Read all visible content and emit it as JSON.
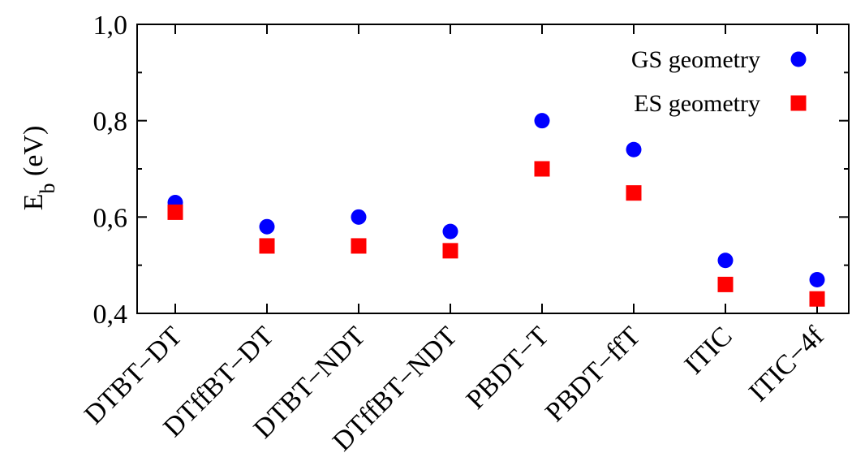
{
  "chart_data": {
    "type": "scatter",
    "categories": [
      "DTBT−DT",
      "DTffBT−DT",
      "DTBT−NDT",
      "DTffBT−NDT",
      "PBDT−T",
      "PBDT−ffT",
      "ITIC",
      "ITIC−4f"
    ],
    "series": [
      {
        "name": "GS geometry",
        "marker": "circle",
        "color": "#0000ff",
        "values": [
          0.63,
          0.58,
          0.6,
          0.57,
          0.8,
          0.74,
          0.51,
          0.47
        ]
      },
      {
        "name": "ES geometry",
        "marker": "square",
        "color": "#ff0000",
        "values": [
          0.61,
          0.54,
          0.54,
          0.53,
          0.7,
          0.65,
          0.46,
          0.43
        ]
      }
    ],
    "ylabel_main": "E",
    "ylabel_sub": "b",
    "ylabel_unit": " (eV)",
    "ylim": [
      0.4,
      1.0
    ],
    "yticks": [
      0.4,
      0.6,
      0.8,
      1.0
    ],
    "ytick_labels": [
      "0,4",
      "0,6",
      "0,8",
      "1,0"
    ],
    "grid": false,
    "legend_position": "top-right"
  }
}
